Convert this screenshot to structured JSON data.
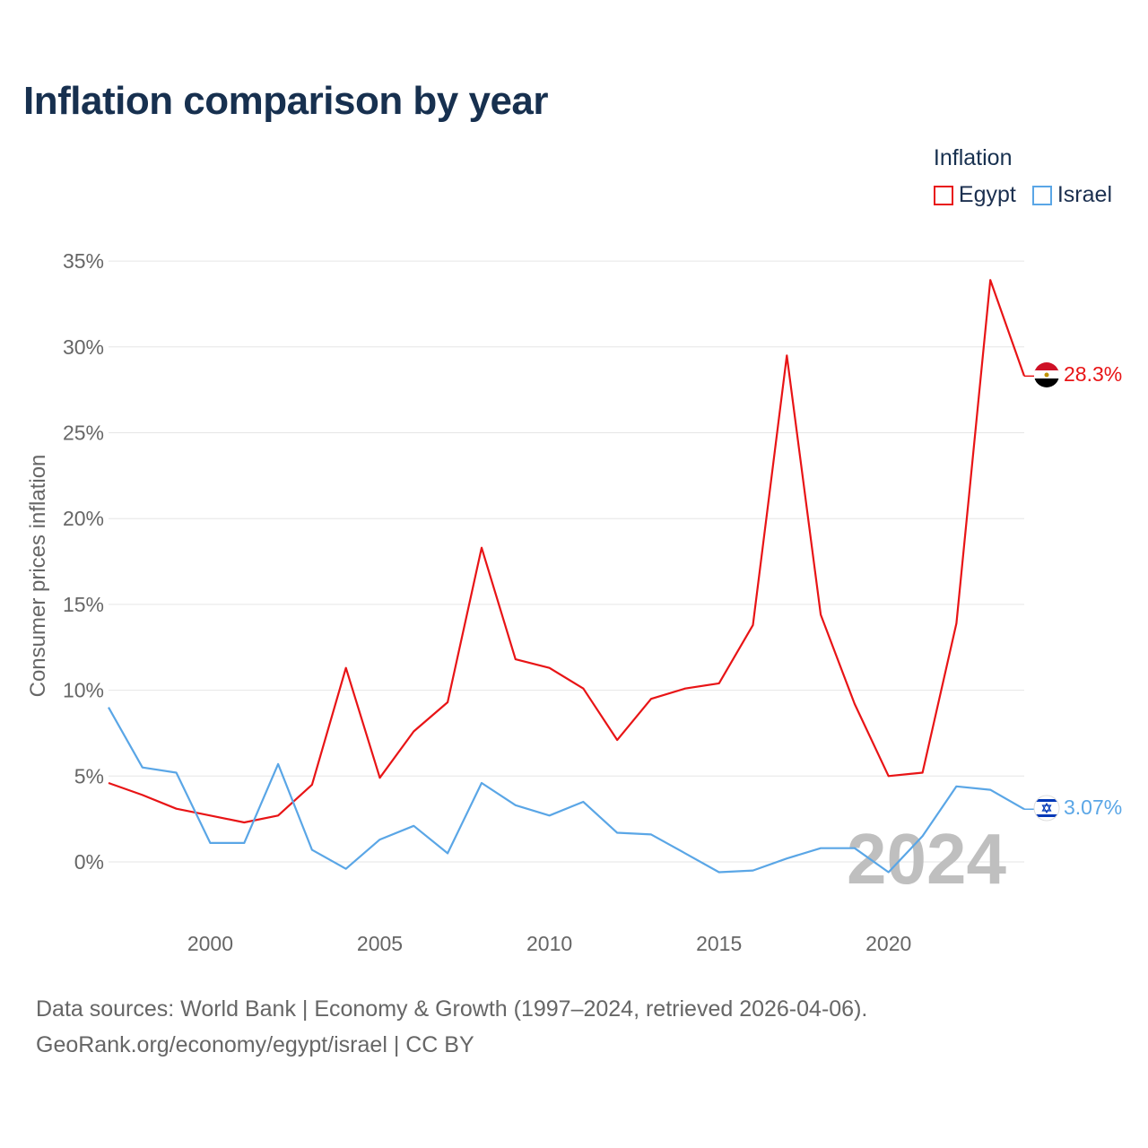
{
  "title": "Inflation comparison by year",
  "legend": {
    "title": "Inflation",
    "items": [
      {
        "label": "Egypt",
        "color": "#e81416"
      },
      {
        "label": "Israel",
        "color": "#5aa6e6"
      }
    ]
  },
  "footer": {
    "line1": "Data sources: World Bank | Economy & Growth (1997–2024, retrieved 2026-04-06).",
    "line2": "GeoRank.org/economy/egypt/israel | CC BY"
  },
  "chart_data": {
    "type": "line",
    "title": "Inflation comparison by year",
    "xlabel": "",
    "ylabel": "Consumer prices inflation",
    "xlim": [
      1997,
      2024
    ],
    "ylim": [
      -2,
      35
    ],
    "x_ticks": [
      2000,
      2005,
      2010,
      2015,
      2020
    ],
    "y_ticks": [
      0,
      5,
      10,
      15,
      20,
      25,
      30,
      35
    ],
    "y_tick_labels": [
      "0%",
      "5%",
      "10%",
      "15%",
      "20%",
      "25%",
      "30%",
      "35%"
    ],
    "grid": true,
    "legend_position": "top-right",
    "overlay_year": "2024",
    "x": [
      1997,
      1998,
      1999,
      2000,
      2001,
      2002,
      2003,
      2004,
      2005,
      2006,
      2007,
      2008,
      2009,
      2010,
      2011,
      2012,
      2013,
      2014,
      2015,
      2016,
      2017,
      2018,
      2019,
      2020,
      2021,
      2022,
      2023,
      2024
    ],
    "series": [
      {
        "name": "Egypt",
        "color": "#e81416",
        "end_label": "28.3%",
        "values": [
          4.6,
          3.9,
          3.1,
          2.7,
          2.3,
          2.7,
          4.5,
          11.3,
          4.9,
          7.6,
          9.3,
          18.3,
          11.8,
          11.3,
          10.1,
          7.1,
          9.5,
          10.1,
          10.4,
          13.8,
          29.5,
          14.4,
          9.2,
          5.0,
          5.2,
          13.9,
          33.9,
          28.3
        ]
      },
      {
        "name": "Israel",
        "color": "#5aa6e6",
        "end_label": "3.07%",
        "values": [
          9.0,
          5.5,
          5.2,
          1.1,
          1.1,
          5.7,
          0.7,
          -0.4,
          1.3,
          2.1,
          0.5,
          4.6,
          3.3,
          2.7,
          3.5,
          1.7,
          1.6,
          0.5,
          -0.6,
          -0.5,
          0.2,
          0.8,
          0.8,
          -0.6,
          1.5,
          4.4,
          4.2,
          3.07
        ]
      }
    ]
  }
}
